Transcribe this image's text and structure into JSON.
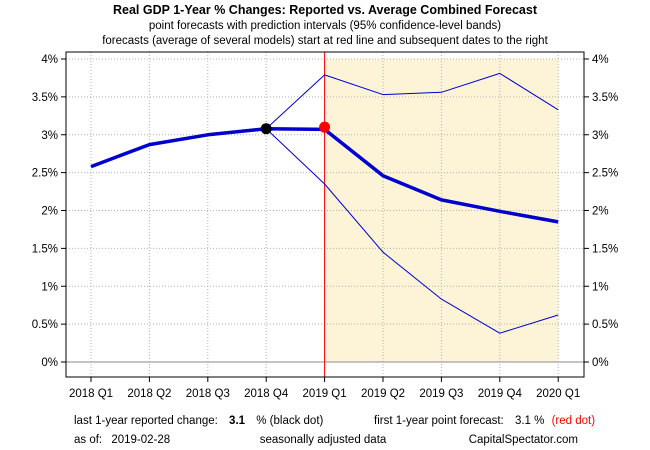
{
  "chart_data": {
    "type": "line",
    "title": "Real GDP 1-Year % Changes: Reported vs. Average Combined Forecast",
    "subtitle": [
      "point forecasts with prediction intervals (95% confidence-level bands)",
      "forecasts (average of several models) start at red line and subsequent dates to the right"
    ],
    "categories": [
      "2018 Q1",
      "2018 Q2",
      "2018 Q3",
      "2018 Q4",
      "2019 Q1",
      "2019 Q2",
      "2019 Q3",
      "2019 Q4",
      "2020 Q1"
    ],
    "y_ticks": [
      "0%",
      "0.5%",
      "1%",
      "1.5%",
      "2%",
      "2.5%",
      "3%",
      "3.5%",
      "4%"
    ],
    "ylim": [
      0,
      4
    ],
    "grid": true,
    "forecast_start_category": "2019 Q1",
    "colors": {
      "main": "#0000cc",
      "band": "#0000cc",
      "forecast_shade": "#fdf3d7",
      "forecast_line": "#ff0000",
      "reported_dot": "#000000",
      "forecast_dot": "#ff0000",
      "zero_line": "#b0b0b0",
      "grid": "#b0b0b0"
    },
    "series": [
      {
        "role": "main",
        "values": [
          2.58,
          2.87,
          3.0,
          3.08,
          3.07,
          2.46,
          2.14,
          1.99,
          1.85
        ]
      },
      {
        "role": "upper",
        "values": [
          null,
          null,
          null,
          3.08,
          3.79,
          3.53,
          3.56,
          3.81,
          3.33
        ]
      },
      {
        "role": "lower",
        "values": [
          null,
          null,
          null,
          3.08,
          2.35,
          1.45,
          0.83,
          0.38,
          0.62
        ]
      }
    ],
    "points": [
      {
        "role": "reported",
        "category": "2018 Q4",
        "value": 3.08
      },
      {
        "role": "forecast",
        "category": "2019 Q1",
        "value": 3.1
      }
    ]
  },
  "footer": {
    "reported_prefix": "last 1-year reported change:",
    "reported_value": "3.1",
    "reported_suffix": "% (black dot)",
    "forecast_prefix": "first 1-year point forecast:",
    "forecast_value": "3.1 %",
    "forecast_suffix": "(red dot)",
    "asof_label": "as of:",
    "asof_date": "2019-02-28",
    "adjustment_note": "seasonally adjusted data",
    "source": "CapitalSpectator.com"
  }
}
